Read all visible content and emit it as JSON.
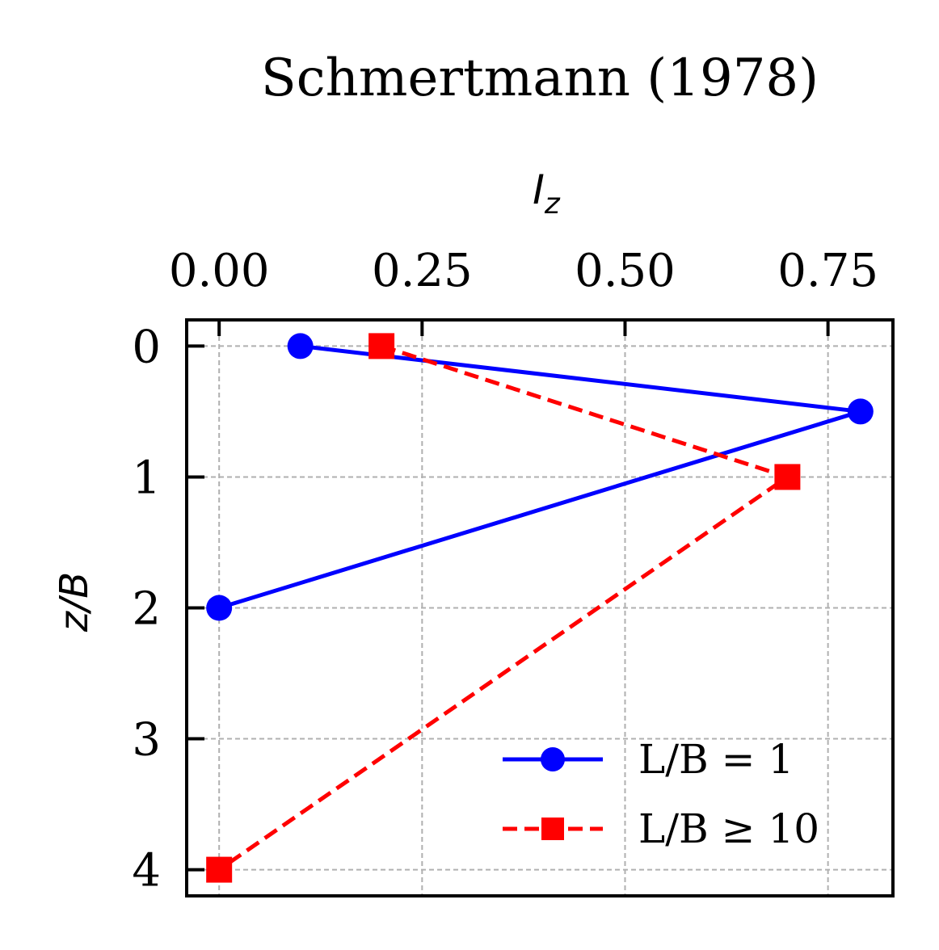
{
  "chart_data": {
    "type": "line",
    "title": "Schmertmann (1978)",
    "xlabel": "I",
    "xlabel_sub": "z",
    "ylabel": "z/B",
    "x_axis_position": "top",
    "y_axis_inverted": true,
    "xlim": [
      -0.04,
      0.83
    ],
    "ylim": [
      4.2,
      -0.2
    ],
    "xticks": [
      0.0,
      0.25,
      0.5,
      0.75
    ],
    "xtick_labels": [
      "0.00",
      "0.25",
      "0.50",
      "0.75"
    ],
    "yticks": [
      0,
      1,
      2,
      3,
      4
    ],
    "ytick_labels": [
      "0",
      "1",
      "2",
      "3",
      "4"
    ],
    "grid": true,
    "legend_position": "lower-right",
    "series": [
      {
        "name": "L/B = 1",
        "color": "#0000ff",
        "line_style": "solid",
        "marker": "circle",
        "x": [
          0.1,
          0.79,
          0.0
        ],
        "y": [
          0.0,
          0.5,
          2.0
        ]
      },
      {
        "name": "L/B ≥ 10",
        "color": "#ff0000",
        "line_style": "dashed",
        "marker": "square",
        "x": [
          0.2,
          0.7,
          0.0
        ],
        "y": [
          0.0,
          1.0,
          4.0
        ]
      }
    ]
  }
}
